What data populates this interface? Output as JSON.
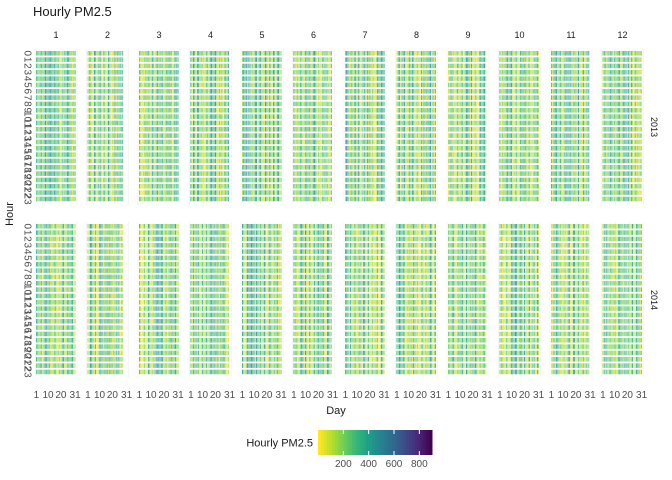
{
  "chart_data": {
    "type": "heatmap",
    "title": "Hourly PM2.5",
    "xlabel": "Day",
    "ylabel": "Hour",
    "facet_columns": [
      "1",
      "2",
      "3",
      "4",
      "5",
      "6",
      "7",
      "8",
      "9",
      "10",
      "11",
      "12"
    ],
    "facet_rows": [
      "2013",
      "2014"
    ],
    "x_ticks": [
      "1",
      "10",
      "20",
      "31"
    ],
    "y_ticks": [
      "0",
      "1",
      "2",
      "3",
      "4",
      "5",
      "6",
      "7",
      "8",
      "9",
      "10",
      "11",
      "12",
      "13",
      "14",
      "15",
      "16",
      "17",
      "18",
      "19",
      "20",
      "21",
      "22",
      "23"
    ],
    "colorscale": "viridis (reversed)",
    "colorbar": {
      "title": "Hourly PM2.5",
      "ticks": [
        200,
        400,
        600,
        800
      ],
      "range": [
        0,
        900
      ]
    },
    "colors": {
      "low": "#fde725",
      "mid": "#21918c",
      "high": "#440154"
    },
    "grid": "on",
    "legend_position": "bottom"
  }
}
